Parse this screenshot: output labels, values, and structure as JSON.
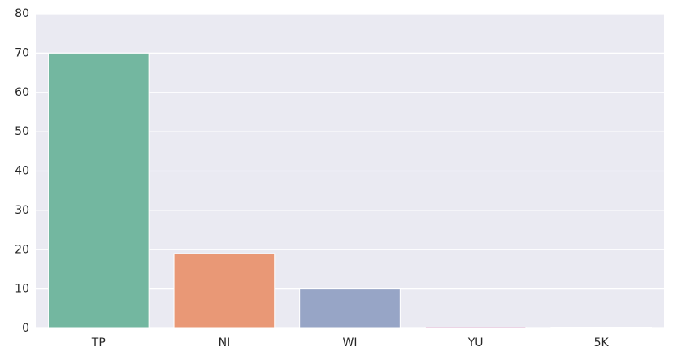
{
  "chart_data": {
    "type": "bar",
    "categories": [
      "TP",
      "NI",
      "WI",
      "YU",
      "5K"
    ],
    "values": [
      70,
      19,
      10,
      0.3,
      0.1
    ],
    "ylim": [
      0,
      80
    ],
    "yticks": [
      0,
      10,
      20,
      30,
      40,
      50,
      60,
      70,
      80
    ],
    "colors": [
      "#73b7a0",
      "#e99876",
      "#97a5c6",
      "#d49fc6",
      "#b5cf81"
    ],
    "grid": true,
    "background": "#eaeaf2"
  }
}
